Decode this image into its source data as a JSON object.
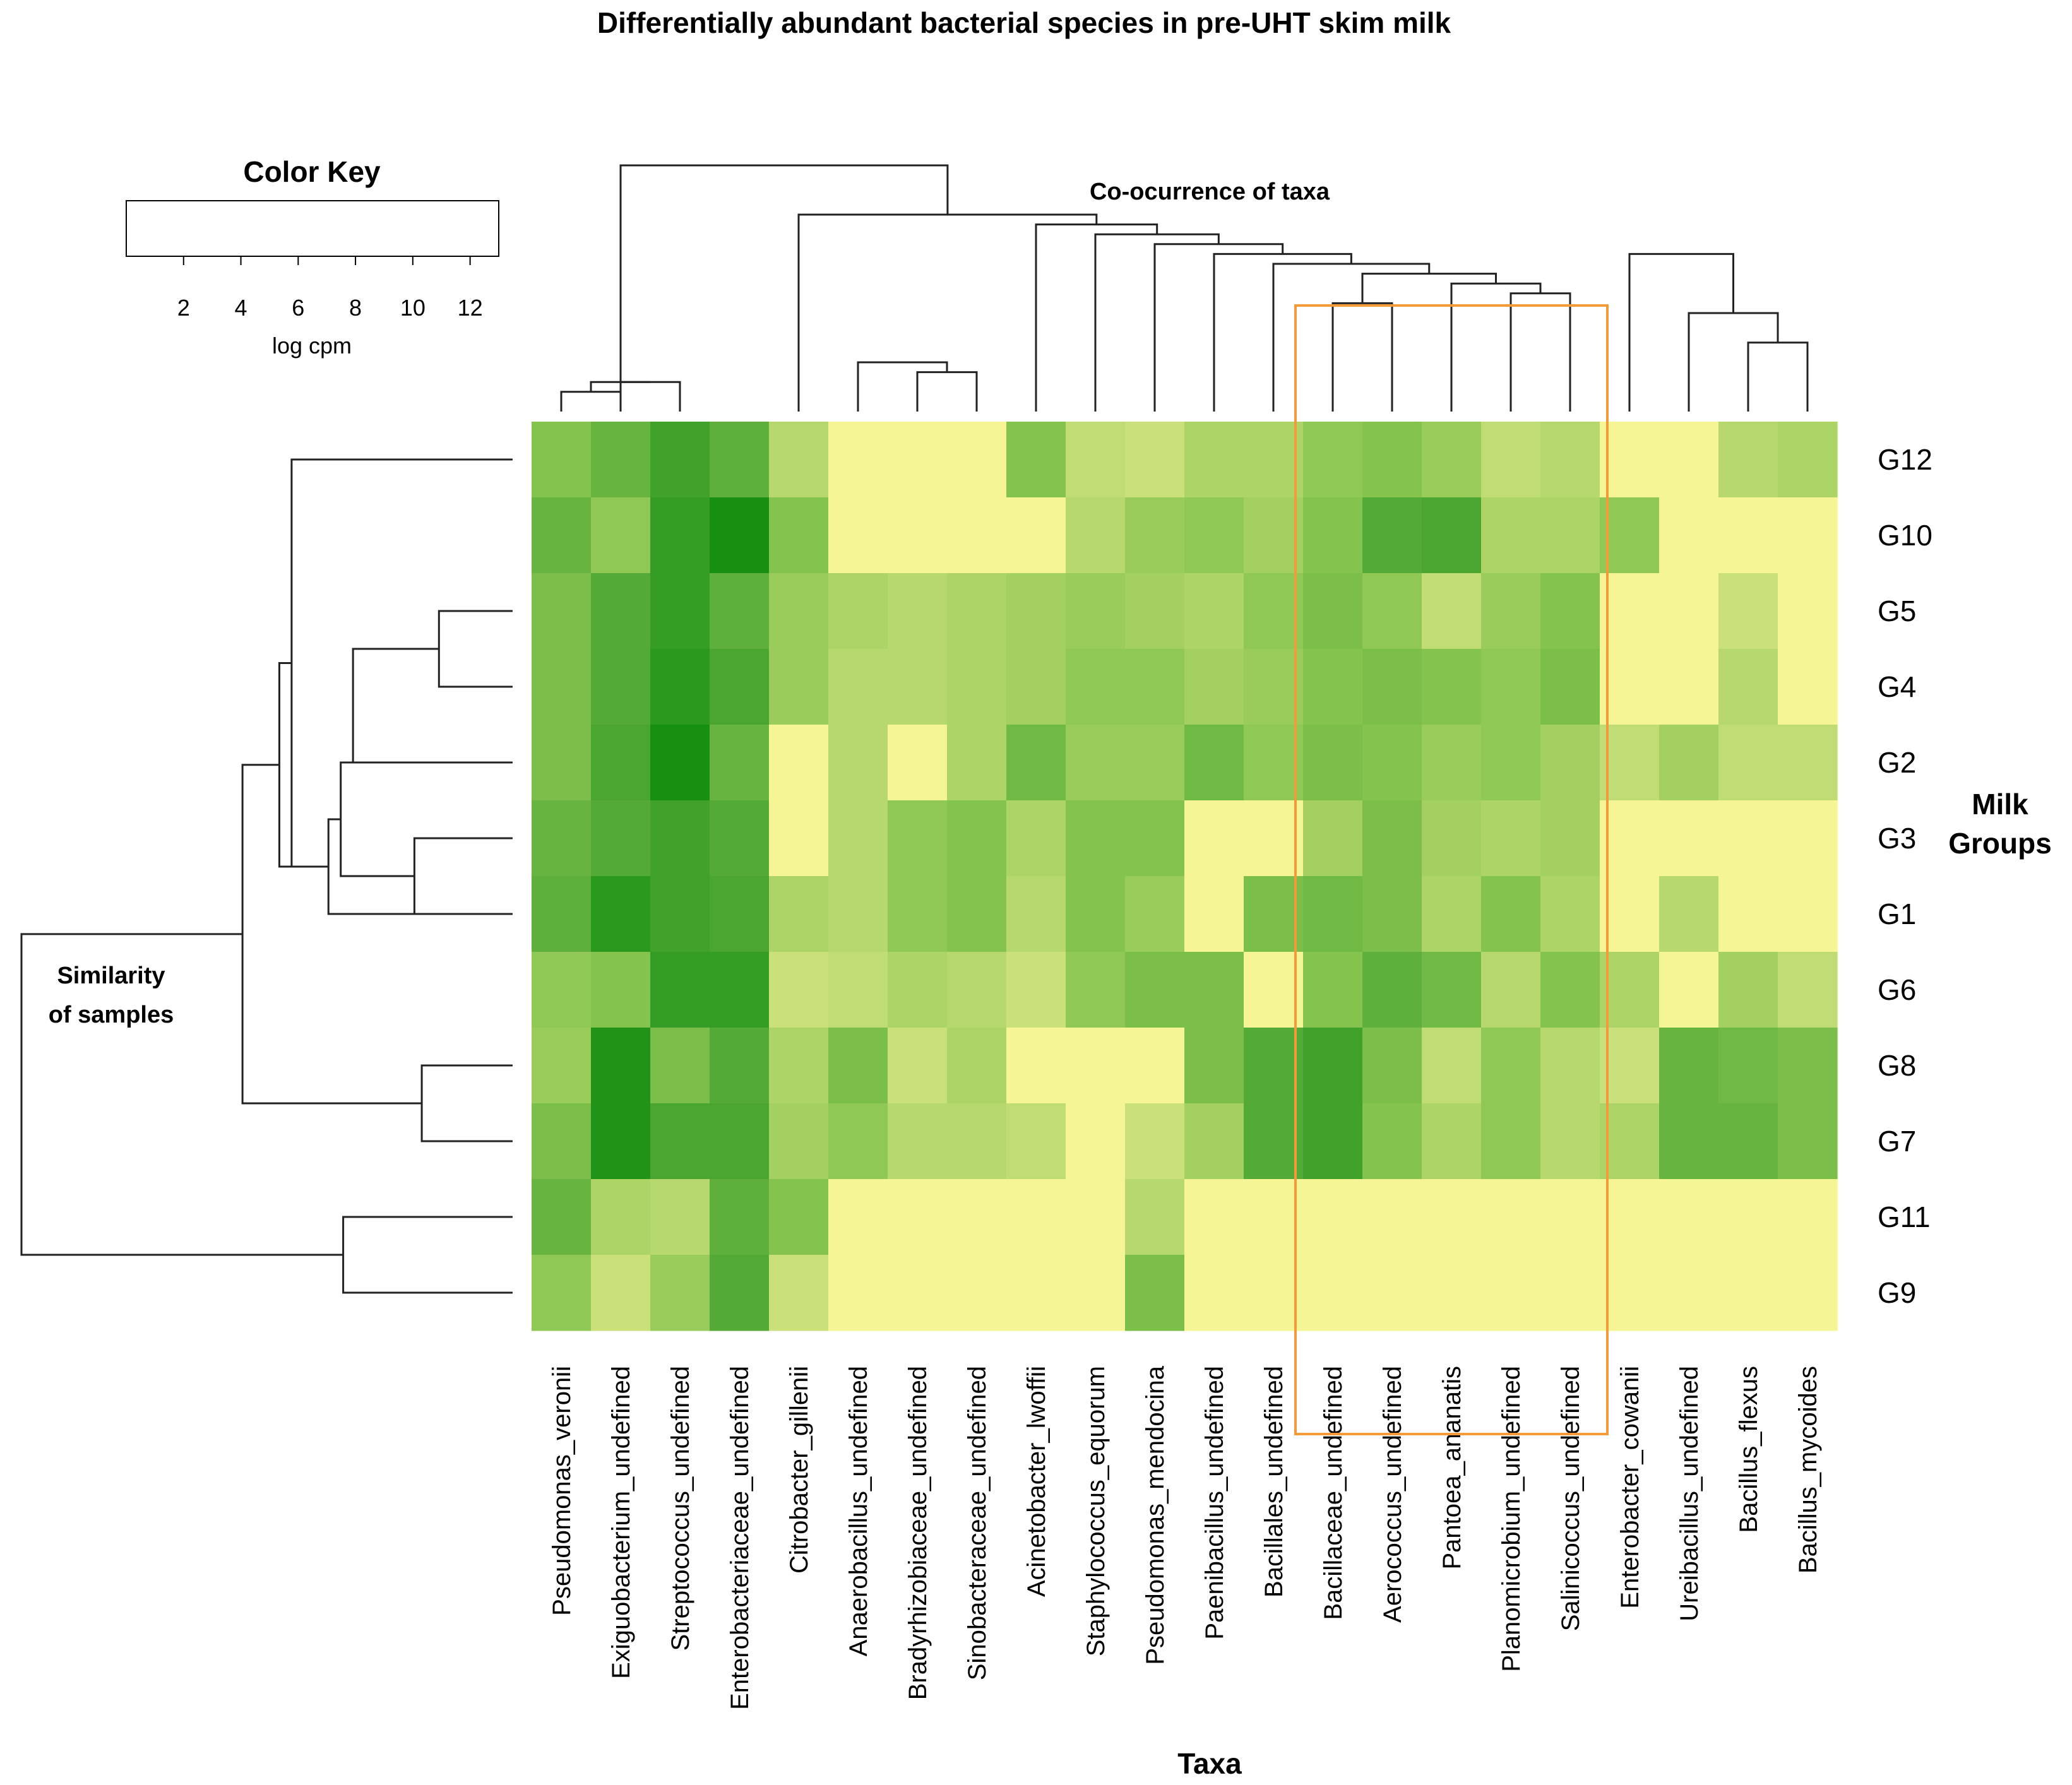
{
  "chart_data": {
    "type": "heatmap",
    "title": "Differentially abundant bacterial species in pre-UHT skim milk",
    "xlabel": "Taxa",
    "ylabel": "Milk\nGroups",
    "top_dendrogram_label": "Co-ocurrence of taxa",
    "left_dendrogram_label": "Similarity\nof samples",
    "color_key": {
      "title": "Color Key",
      "label": "log cpm",
      "range": [
        0,
        13
      ],
      "ticks": [
        "2",
        "4",
        "6",
        "8",
        "10",
        "12"
      ],
      "colors": [
        "#fdf99a",
        "#cfe27e",
        "#8fc854",
        "#4fa834",
        "#0c8a0c"
      ]
    },
    "taxa": [
      "Pseudomonas_veronii",
      "Exiguobacterium_undefined",
      "Streptococcus_undefined",
      "Enterobacteriaceae_undefined",
      "Citrobacter_gillenii",
      "Anaerobacillus_undefined",
      "Bradyrhizobiaceae_undefined",
      "Sinobacteraceae_undefined",
      "Acinetobacter_lwoffii",
      "Staphylococcus_equorum",
      "Pseudomonas_mendocina",
      "Paenibacillus_undefined",
      "Bacillales_undefined",
      "Bacillaceae_undefined",
      "Aerococcus_undefined",
      "Pantoea_ananatis",
      "Planomicrobium_undefined",
      "Salinicoccus_undefined",
      "Enterobacter_cowanii",
      "Ureibacillus_undefined",
      "Bacillus_flexus",
      "Bacillus_mycoides"
    ],
    "groups": [
      "G12",
      "G10",
      "G5",
      "G4",
      "G2",
      "G3",
      "G1",
      "G6",
      "G8",
      "G7",
      "G11",
      "G9"
    ],
    "values": [
      [
        7.0,
        8.5,
        10.5,
        9.0,
        4.5,
        0.5,
        0.5,
        0.5,
        7.0,
        4.0,
        3.5,
        5.0,
        5.0,
        6.5,
        7.0,
        6.0,
        4.0,
        4.5,
        0.5,
        0.5,
        4.5,
        5.0
      ],
      [
        8.5,
        6.5,
        11.0,
        12.5,
        7.0,
        0.5,
        0.5,
        0.5,
        0.5,
        4.5,
        6.0,
        6.5,
        5.5,
        7.0,
        9.5,
        10.0,
        5.0,
        5.0,
        6.5,
        0.5,
        0.5,
        0.5
      ],
      [
        7.5,
        9.5,
        11.0,
        9.0,
        6.0,
        5.0,
        4.5,
        5.0,
        5.5,
        6.0,
        5.5,
        5.0,
        6.5,
        7.5,
        6.5,
        4.0,
        6.0,
        7.0,
        0.5,
        0.5,
        3.5,
        0.5
      ],
      [
        7.5,
        9.5,
        11.5,
        10.0,
        6.0,
        4.5,
        4.5,
        5.0,
        5.5,
        6.5,
        6.5,
        5.5,
        6.0,
        7.0,
        7.5,
        7.0,
        6.5,
        7.5,
        0.5,
        0.5,
        4.5,
        0.5
      ],
      [
        7.5,
        10.0,
        12.5,
        8.5,
        0.5,
        4.5,
        0.5,
        5.0,
        8.0,
        6.0,
        6.0,
        8.0,
        6.5,
        7.5,
        7.0,
        6.0,
        6.5,
        5.5,
        4.0,
        5.5,
        4.0,
        4.0
      ],
      [
        8.5,
        9.5,
        10.5,
        9.5,
        0.5,
        4.5,
        6.5,
        7.0,
        5.0,
        7.0,
        7.0,
        0.5,
        0.5,
        5.5,
        7.5,
        5.5,
        5.0,
        5.5,
        0.5,
        0.5,
        0.5,
        0.5
      ],
      [
        9.0,
        11.5,
        10.5,
        10.0,
        5.0,
        4.5,
        6.5,
        7.0,
        4.5,
        7.0,
        6.0,
        0.5,
        7.5,
        8.0,
        7.5,
        5.0,
        7.0,
        5.0,
        0.5,
        4.5,
        0.5,
        0.5
      ],
      [
        6.5,
        7.0,
        11.0,
        11.0,
        3.5,
        4.0,
        5.0,
        4.5,
        3.5,
        6.5,
        7.5,
        7.5,
        0.5,
        7.0,
        9.0,
        8.0,
        4.5,
        7.0,
        5.0,
        0.5,
        5.5,
        4.0
      ],
      [
        6.0,
        12.0,
        7.5,
        9.5,
        5.0,
        7.5,
        3.5,
        5.0,
        0.5,
        0.5,
        0.5,
        7.5,
        9.5,
        10.5,
        7.5,
        4.0,
        6.5,
        4.5,
        3.5,
        8.5,
        8.0,
        7.5
      ],
      [
        7.5,
        12.0,
        10.0,
        10.0,
        5.5,
        6.5,
        4.5,
        4.5,
        4.0,
        0.5,
        3.5,
        5.5,
        9.5,
        10.5,
        7.0,
        5.0,
        6.5,
        4.5,
        5.0,
        8.5,
        8.5,
        7.5
      ],
      [
        8.5,
        5.0,
        4.5,
        9.0,
        7.0,
        0.5,
        0.5,
        0.5,
        0.5,
        0.5,
        4.5,
        0.5,
        0.5,
        0.5,
        0.5,
        0.5,
        0.5,
        0.5,
        0.5,
        0.5,
        0.5,
        0.5
      ],
      [
        6.5,
        3.5,
        6.0,
        9.5,
        3.5,
        0.5,
        0.5,
        0.5,
        0.5,
        0.5,
        7.5,
        0.5,
        0.5,
        0.5,
        0.5,
        0.5,
        0.5,
        0.5,
        0.5,
        0.5,
        0.5,
        0.5
      ]
    ],
    "col_dendrogram": [
      [
        0,
        1,
        3,
        2
      ],
      [
        1,
        2,
        3,
        3
      ],
      [
        0,
        1,
        2,
        3
      ],
      [
        6,
        7,
        1,
        4
      ],
      [
        5,
        6,
        1,
        5
      ],
      [
        13,
        14,
        1,
        11
      ],
      [
        16,
        17,
        1,
        12
      ],
      [
        15,
        16,
        1,
        13
      ],
      [
        13,
        15,
        1,
        14
      ],
      [
        12,
        13,
        1,
        15
      ],
      [
        11,
        12,
        1,
        16
      ],
      [
        10,
        11,
        1,
        17
      ],
      [
        9,
        10,
        1,
        18
      ],
      [
        8,
        9,
        1,
        19
      ],
      [
        4,
        8,
        1,
        20
      ],
      [
        20,
        21,
        1,
        7
      ],
      [
        19,
        20,
        1,
        10
      ],
      [
        18,
        19,
        1,
        16
      ],
      [
        0,
        4,
        1,
        25
      ]
    ],
    "row_dendrogram": [
      [
        2,
        3,
        1,
        3
      ],
      [
        5,
        6,
        1,
        4
      ],
      [
        2,
        4,
        1,
        6.5
      ],
      [
        4,
        5,
        1,
        7
      ],
      [
        4,
        6,
        1,
        7.5
      ],
      [
        0,
        1,
        1,
        9
      ],
      [
        0,
        4,
        1,
        9.5
      ],
      [
        8,
        9,
        1,
        3.7
      ],
      [
        0,
        8,
        1,
        11
      ],
      [
        10,
        11,
        1,
        6.9
      ],
      [
        0,
        10,
        1,
        20
      ]
    ],
    "highlight_box": {
      "from_taxon": "Bacillaceae_undefined",
      "to_taxon": "Salinicoccus_undefined",
      "color": "#f59a3a"
    }
  }
}
